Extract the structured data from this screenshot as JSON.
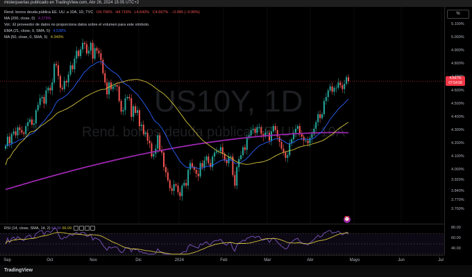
{
  "header": {
    "caption": "misterpuertas publicado en TradingView.com, Abr 26, 2024 15:05 UTC+2"
  },
  "watermark": {
    "symbol": "US10Y, 1D",
    "name": "Rend. bonos deuda pública EE. UU. a 10A"
  },
  "legend": {
    "symbol_line": "Rend. bonos deuda pública EE. UU. a 10A, 1D, TVC",
    "ohlc": {
      "o": "4.706%",
      "h": "4.715%",
      "l": "4.642%",
      "c": "4.667%",
      "chg": "−0.045 (−0.96%)"
    },
    "ma200": {
      "label": "MA (200, close, 0)",
      "value": "4.279%"
    },
    "vol_note": "Vol.: El proveedor de datos no proporciona datos sobre el volumen para este símbolo.",
    "ema21": {
      "label": "EMA (21, close, 0, SMA, 5)",
      "value": "4.538%"
    },
    "ma50": {
      "label": "MA (50, close, 0, SMA, 5)",
      "value": "4.349%"
    }
  },
  "rsi_legend": {
    "label": "RSI (14, close, SMA, 14, 2)",
    "v1": "63.99",
    "v2": "66.09"
  },
  "scale_button": "%",
  "price_tag": {
    "value": "4.667%",
    "countdown": "07:54:58"
  },
  "y_axis": [
    "5.100%",
    "5.000%",
    "4.900%",
    "4.800%",
    "4.700%",
    "4.600%",
    "4.500%",
    "4.400%",
    "4.300%",
    "4.200%",
    "4.100%",
    "4.000%",
    "3.920%",
    "3.840%",
    "3.770%",
    "3.700%"
  ],
  "rsi_axis": [
    "80.00",
    "60.00",
    "40.00"
  ],
  "x_axis": [
    "Sep",
    "Oct",
    "Nov",
    "Dic",
    "2024",
    "Feb",
    "Mar",
    "Abr",
    "Mayo",
    "Jun",
    "Jul"
  ],
  "footer": {
    "logo": "TradingView"
  },
  "colors": {
    "up": "#26a69a",
    "down": "#ef5350",
    "ma200": "#9c27b0",
    "ema21": "#2962ff",
    "ma50": "#d4c43b",
    "rsi": "#7e57c2",
    "rsi_ma": "#d4c43b"
  },
  "chart_data": {
    "type": "candlestick",
    "y_unit": "%",
    "ylim": [
      3.66,
      5.2
    ],
    "x_labels": [
      "Sep",
      "Oct",
      "Nov",
      "Dic",
      "2024",
      "Feb",
      "Mar",
      "Abr",
      "Mayo",
      "Jun",
      "Jul"
    ],
    "closes": [
      4.18,
      4.25,
      4.2,
      4.27,
      4.29,
      4.26,
      4.32,
      4.3,
      4.28,
      4.27,
      4.33,
      4.36,
      4.38,
      4.34,
      4.35,
      4.45,
      4.49,
      4.54,
      4.55,
      4.5,
      4.6,
      4.62,
      4.6,
      4.66,
      4.8,
      4.79,
      4.71,
      4.62,
      4.61,
      4.67,
      4.66,
      4.72,
      4.79,
      4.76,
      4.84,
      4.9,
      4.86,
      4.91,
      4.96,
      4.95,
      4.88,
      4.9,
      4.96,
      4.84,
      4.92,
      4.9,
      4.88,
      4.83,
      4.73,
      4.66,
      4.57,
      4.66,
      4.61,
      4.63,
      4.64,
      4.63,
      4.52,
      4.44,
      4.45,
      4.54,
      4.55,
      4.54,
      4.4,
      4.48,
      4.43,
      4.45,
      4.33,
      4.34,
      4.27,
      4.28,
      4.22,
      4.2,
      4.1,
      4.12,
      4.16,
      4.26,
      4.15,
      4.13,
      4.02,
      3.98,
      3.92,
      3.86,
      3.84,
      3.89,
      3.88,
      3.83,
      3.8,
      3.88,
      3.9,
      3.88,
      4.0,
      4.05,
      4.02,
      4.0,
      3.97,
      3.95,
      4.05,
      4.02,
      4.07,
      4.1,
      4.05,
      4.02,
      4.1,
      4.13,
      4.14,
      4.14,
      4.17,
      4.12,
      4.07,
      4.05,
      4.1,
      4.1,
      3.96,
      3.88,
      4.02,
      4.08,
      4.11,
      4.17,
      4.15,
      4.24,
      4.26,
      4.3,
      4.31,
      4.28,
      4.32,
      4.32,
      4.27,
      4.25,
      4.28,
      4.28,
      4.22,
      4.29,
      4.33,
      4.3,
      4.25,
      4.21,
      4.16,
      4.13,
      4.09,
      4.11,
      4.2,
      4.23,
      4.28,
      4.31,
      4.33,
      4.27,
      4.25,
      4.22,
      4.22,
      4.2,
      4.24,
      4.27,
      4.31,
      4.36,
      4.42,
      4.39,
      4.42,
      4.52,
      4.55,
      4.6,
      4.63,
      4.59,
      4.62,
      4.62,
      4.66,
      4.64,
      4.61,
      4.65,
      4.7,
      4.67
    ],
    "ma200": {
      "start": 3.85,
      "end": 4.28
    },
    "series": [
      {
        "name": "MA (200, close, 0)",
        "last": 4.279
      },
      {
        "name": "EMA (21, close, 0, SMA, 5)",
        "last": 4.538
      },
      {
        "name": "MA (50, close, 0, SMA, 5)",
        "last": 4.349
      }
    ],
    "rsi": {
      "ylim": [
        30,
        85
      ],
      "levels": [
        70,
        50,
        30
      ],
      "last": 63.99,
      "ma_last": 66.09
    }
  }
}
